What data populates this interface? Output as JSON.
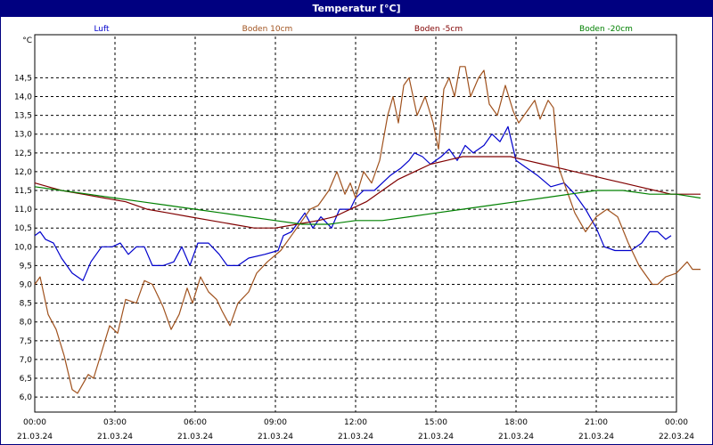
{
  "window": {
    "title": "Temperatur [°C]"
  },
  "chart_data": {
    "type": "line",
    "title": "Temperatur [°C]",
    "ylabel": "°C",
    "ylim": [
      5.6,
      15.6
    ],
    "grid": true,
    "legend_position": "top",
    "x_ticks": [
      {
        "time": "00:00",
        "date": "21.03.24"
      },
      {
        "time": "03:00",
        "date": "21.03.24"
      },
      {
        "time": "06:00",
        "date": "21.03.24"
      },
      {
        "time": "09:00",
        "date": "21.03.24"
      },
      {
        "time": "12:00",
        "date": "21.03.24"
      },
      {
        "time": "15:00",
        "date": "21.03.24"
      },
      {
        "time": "18:00",
        "date": "21.03.24"
      },
      {
        "time": "21:00",
        "date": "21.03.24"
      },
      {
        "time": "00:00",
        "date": "22.03.24"
      }
    ],
    "y_ticks": [
      "6,0",
      "6,5",
      "7,0",
      "7,5",
      "8,0",
      "8,5",
      "9,0",
      "9,5",
      "10,0",
      "10,5",
      "11,0",
      "11,5",
      "12,0",
      "12,5",
      "13,0",
      "13,5",
      "14,0",
      "14,5"
    ],
    "series": [
      {
        "name": "Luft",
        "color": "#0000cc",
        "points": [
          [
            0,
            10.3
          ],
          [
            0.2,
            10.4
          ],
          [
            0.4,
            10.2
          ],
          [
            0.7,
            10.1
          ],
          [
            1.0,
            9.7
          ],
          [
            1.4,
            9.3
          ],
          [
            1.8,
            9.1
          ],
          [
            2.1,
            9.6
          ],
          [
            2.5,
            10.0
          ],
          [
            2.9,
            10.0
          ],
          [
            3.2,
            10.1
          ],
          [
            3.5,
            9.8
          ],
          [
            3.8,
            10.0
          ],
          [
            4.1,
            10.0
          ],
          [
            4.4,
            9.5
          ],
          [
            4.8,
            9.5
          ],
          [
            5.2,
            9.6
          ],
          [
            5.5,
            10.0
          ],
          [
            5.8,
            9.5
          ],
          [
            6.1,
            10.1
          ],
          [
            6.5,
            10.1
          ],
          [
            6.9,
            9.8
          ],
          [
            7.2,
            9.5
          ],
          [
            7.6,
            9.5
          ],
          [
            8.0,
            9.7
          ],
          [
            8.6,
            9.8
          ],
          [
            9.1,
            9.9
          ],
          [
            9.3,
            10.3
          ],
          [
            9.6,
            10.4
          ],
          [
            10.1,
            10.9
          ],
          [
            10.4,
            10.5
          ],
          [
            10.7,
            10.8
          ],
          [
            11.1,
            10.5
          ],
          [
            11.4,
            11.0
          ],
          [
            11.8,
            11.0
          ],
          [
            12.0,
            11.3
          ],
          [
            12.3,
            11.5
          ],
          [
            12.7,
            11.5
          ],
          [
            13.0,
            11.7
          ],
          [
            13.3,
            11.9
          ],
          [
            13.7,
            12.1
          ],
          [
            14.0,
            12.3
          ],
          [
            14.2,
            12.5
          ],
          [
            14.5,
            12.4
          ],
          [
            14.8,
            12.2
          ],
          [
            15.2,
            12.4
          ],
          [
            15.5,
            12.6
          ],
          [
            15.8,
            12.3
          ],
          [
            16.1,
            12.7
          ],
          [
            16.4,
            12.5
          ],
          [
            16.8,
            12.7
          ],
          [
            17.1,
            13.0
          ],
          [
            17.4,
            12.8
          ],
          [
            17.7,
            13.2
          ],
          [
            18.0,
            12.3
          ],
          [
            18.4,
            12.1
          ],
          [
            18.8,
            11.9
          ],
          [
            19.3,
            11.6
          ],
          [
            19.8,
            11.7
          ],
          [
            20.2,
            11.4
          ],
          [
            20.6,
            11.0
          ],
          [
            21.0,
            10.5
          ],
          [
            21.3,
            10.0
          ],
          [
            21.7,
            9.9
          ],
          [
            22.3,
            9.9
          ],
          [
            22.7,
            10.1
          ],
          [
            23.0,
            10.4
          ],
          [
            23.3,
            10.4
          ],
          [
            23.6,
            10.2
          ],
          [
            23.8,
            10.3
          ]
        ]
      },
      {
        "name": "Boden 10cm",
        "color": "#a0521e",
        "points": [
          [
            0,
            9.0
          ],
          [
            0.2,
            9.2
          ],
          [
            0.5,
            8.2
          ],
          [
            0.8,
            7.8
          ],
          [
            1.1,
            7.1
          ],
          [
            1.4,
            6.2
          ],
          [
            1.6,
            6.1
          ],
          [
            2.0,
            6.6
          ],
          [
            2.2,
            6.5
          ],
          [
            2.5,
            7.2
          ],
          [
            2.8,
            7.9
          ],
          [
            3.1,
            7.7
          ],
          [
            3.4,
            8.6
          ],
          [
            3.8,
            8.5
          ],
          [
            4.1,
            9.1
          ],
          [
            4.4,
            9.0
          ],
          [
            4.8,
            8.4
          ],
          [
            5.1,
            7.8
          ],
          [
            5.4,
            8.2
          ],
          [
            5.7,
            8.9
          ],
          [
            5.9,
            8.5
          ],
          [
            6.2,
            9.2
          ],
          [
            6.5,
            8.8
          ],
          [
            6.8,
            8.6
          ],
          [
            7.0,
            8.3
          ],
          [
            7.3,
            7.9
          ],
          [
            7.6,
            8.5
          ],
          [
            8.0,
            8.8
          ],
          [
            8.3,
            9.3
          ],
          [
            8.7,
            9.6
          ],
          [
            9.2,
            9.9
          ],
          [
            9.6,
            10.3
          ],
          [
            10.0,
            10.7
          ],
          [
            10.3,
            11.0
          ],
          [
            10.6,
            11.1
          ],
          [
            11.0,
            11.5
          ],
          [
            11.3,
            12.0
          ],
          [
            11.6,
            11.4
          ],
          [
            11.8,
            11.7
          ],
          [
            12.0,
            11.3
          ],
          [
            12.3,
            12.0
          ],
          [
            12.6,
            11.7
          ],
          [
            12.9,
            12.3
          ],
          [
            13.2,
            13.5
          ],
          [
            13.4,
            14.0
          ],
          [
            13.6,
            13.3
          ],
          [
            13.8,
            14.3
          ],
          [
            14.0,
            14.5
          ],
          [
            14.3,
            13.5
          ],
          [
            14.6,
            14.0
          ],
          [
            14.9,
            13.3
          ],
          [
            15.1,
            12.6
          ],
          [
            15.3,
            14.2
          ],
          [
            15.5,
            14.5
          ],
          [
            15.7,
            14.0
          ],
          [
            15.9,
            14.8
          ],
          [
            16.1,
            14.8
          ],
          [
            16.3,
            14.0
          ],
          [
            16.6,
            14.5
          ],
          [
            16.8,
            14.7
          ],
          [
            17.0,
            13.8
          ],
          [
            17.3,
            13.5
          ],
          [
            17.6,
            14.3
          ],
          [
            17.9,
            13.6
          ],
          [
            18.1,
            13.3
          ],
          [
            18.4,
            13.6
          ],
          [
            18.7,
            13.9
          ],
          [
            18.9,
            13.4
          ],
          [
            19.2,
            13.9
          ],
          [
            19.4,
            13.7
          ],
          [
            19.6,
            12.1
          ],
          [
            19.9,
            11.5
          ],
          [
            20.2,
            10.9
          ],
          [
            20.6,
            10.4
          ],
          [
            21.0,
            10.8
          ],
          [
            21.4,
            11.0
          ],
          [
            21.8,
            10.8
          ],
          [
            22.2,
            10.1
          ],
          [
            22.6,
            9.5
          ],
          [
            22.8,
            9.3
          ],
          [
            23.1,
            9.0
          ],
          [
            23.3,
            9.0
          ],
          [
            23.6,
            9.2
          ],
          [
            24.0,
            9.3
          ],
          [
            24.4,
            9.6
          ],
          [
            24.6,
            9.4
          ],
          [
            24.9,
            9.4
          ]
        ]
      },
      {
        "name": "Boden -5cm",
        "color": "#800000",
        "points": [
          [
            0,
            11.7
          ],
          [
            0.5,
            11.6
          ],
          [
            1.0,
            11.5
          ],
          [
            1.8,
            11.4
          ],
          [
            2.6,
            11.3
          ],
          [
            3.4,
            11.2
          ],
          [
            4.2,
            11.0
          ],
          [
            5.0,
            10.9
          ],
          [
            5.8,
            10.8
          ],
          [
            6.6,
            10.7
          ],
          [
            7.4,
            10.6
          ],
          [
            8.2,
            10.5
          ],
          [
            9.0,
            10.5
          ],
          [
            9.8,
            10.6
          ],
          [
            10.6,
            10.7
          ],
          [
            11.2,
            10.8
          ],
          [
            11.8,
            11.0
          ],
          [
            12.4,
            11.2
          ],
          [
            13.0,
            11.5
          ],
          [
            13.6,
            11.8
          ],
          [
            14.2,
            12.0
          ],
          [
            14.8,
            12.2
          ],
          [
            15.4,
            12.3
          ],
          [
            16.0,
            12.4
          ],
          [
            16.6,
            12.4
          ],
          [
            17.2,
            12.4
          ],
          [
            17.8,
            12.4
          ],
          [
            18.4,
            12.3
          ],
          [
            19.0,
            12.2
          ],
          [
            19.6,
            12.1
          ],
          [
            20.2,
            12.0
          ],
          [
            20.8,
            11.9
          ],
          [
            21.4,
            11.8
          ],
          [
            22.0,
            11.7
          ],
          [
            22.6,
            11.6
          ],
          [
            23.2,
            11.5
          ],
          [
            23.8,
            11.4
          ],
          [
            24.9,
            11.4
          ]
        ]
      },
      {
        "name": "Boden -20cm",
        "color": "#008000",
        "points": [
          [
            0,
            11.6
          ],
          [
            1.0,
            11.5
          ],
          [
            2.0,
            11.4
          ],
          [
            3.0,
            11.3
          ],
          [
            4.0,
            11.2
          ],
          [
            5.0,
            11.1
          ],
          [
            6.0,
            11.0
          ],
          [
            7.0,
            10.9
          ],
          [
            8.0,
            10.8
          ],
          [
            9.0,
            10.7
          ],
          [
            10.0,
            10.6
          ],
          [
            11.0,
            10.6
          ],
          [
            12.0,
            10.7
          ],
          [
            13.0,
            10.7
          ],
          [
            14.0,
            10.8
          ],
          [
            15.0,
            10.9
          ],
          [
            16.0,
            11.0
          ],
          [
            17.0,
            11.1
          ],
          [
            18.0,
            11.2
          ],
          [
            19.0,
            11.3
          ],
          [
            20.0,
            11.4
          ],
          [
            21.0,
            11.5
          ],
          [
            22.0,
            11.5
          ],
          [
            23.0,
            11.4
          ],
          [
            24.0,
            11.4
          ],
          [
            24.9,
            11.3
          ]
        ]
      }
    ]
  }
}
